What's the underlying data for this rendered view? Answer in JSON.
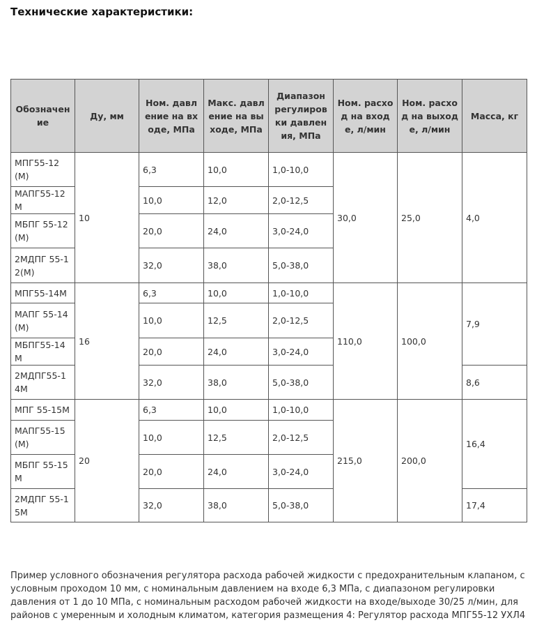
{
  "title": "Технические характеристики:",
  "table": {
    "headers": [
      "Обозначение",
      "Ду, мм",
      "Ном. давление на входе, МПа",
      "Макс. давление на выходе, МПа",
      "Диапазон регулировки давления, МПа",
      "Ном. расход на входе, л/мин",
      "Ном. расход на выходе, л/мин",
      "Масса, кг"
    ],
    "groups": [
      {
        "du": "10",
        "flow_in": "30,0",
        "flow_out": "25,0",
        "rows": [
          {
            "name": "МПГ55-12(М)",
            "p_in": "6,3",
            "p_out": "10,0",
            "range": "1,0-10,0"
          },
          {
            "name": "МАПГ55-12М",
            "p_in": "10,0",
            "p_out": "12,0",
            "range": "2,0-12,5"
          },
          {
            "name": "МБПГ 55-12(М)",
            "p_in": "20,0",
            "p_out": "24,0",
            "range": "3,0-24,0"
          },
          {
            "name": "2МДПГ 55-12(М)",
            "p_in": "32,0",
            "p_out": "38,0",
            "range": "5,0-38,0"
          }
        ],
        "mass": [
          {
            "value": "4,0",
            "span": 4
          }
        ]
      },
      {
        "du": "16",
        "flow_in": "110,0",
        "flow_out": "100,0",
        "rows": [
          {
            "name": "МПГ55-14М",
            "p_in": "6,3",
            "p_out": "10,0",
            "range": "1,0-10,0"
          },
          {
            "name": "МАПГ 55-14(М)",
            "p_in": "10,0",
            "p_out": "12,5",
            "range": "2,0-12,5"
          },
          {
            "name": "МБПГ55-14М",
            "p_in": "20,0",
            "p_out": "24,0",
            "range": "3,0-24,0"
          },
          {
            "name": "2МДПГ55-14М",
            "p_in": "32,0",
            "p_out": "38,0",
            "range": "5,0-38,0"
          }
        ],
        "mass": [
          {
            "value": "7,9",
            "span": 3
          },
          {
            "value": "8,6",
            "span": 1
          }
        ]
      },
      {
        "du": "20",
        "flow_in": "215,0",
        "flow_out": "200,0",
        "rows": [
          {
            "name": "МПГ 55-15М",
            "p_in": "6,3",
            "p_out": "10,0",
            "range": "1,0-10,0"
          },
          {
            "name": "МАПГ55-15(М)",
            "p_in": "10,0",
            "p_out": "12,5",
            "range": "2,0-12,5"
          },
          {
            "name": "МБПГ 55-15М",
            "p_in": "20,0",
            "p_out": "24,0",
            "range": "3,0-24,0"
          },
          {
            "name": "2МДПГ 55-15М",
            "p_in": "32,0",
            "p_out": "38,0",
            "range": "5,0-38,0"
          }
        ],
        "mass": [
          {
            "value": "16,4",
            "span": 3
          },
          {
            "value": "17,4",
            "span": 1
          }
        ]
      }
    ]
  },
  "note": "Пример условного обозначения регулятора расхода рабочей жидкости с предохранительным клапаном, с условным проходом 10 мм, с номинальным давлением на входе 6,3 МПа, с диапазоном регулировки давления от 1 до 10 МПа, с номинальным расходом рабочей жидкости на входе/выходе 30/25 л/мин, для районов с умеренным и холодным климатом, категория размещения 4: Регулятор расхода МПГ55-12 УХЛ4"
}
